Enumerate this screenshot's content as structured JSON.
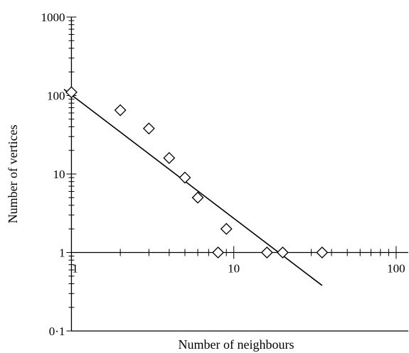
{
  "chart_data": {
    "type": "scatter",
    "title": "",
    "xlabel": "Number of neighbours",
    "ylabel": "Number of vertices",
    "xscale": "log",
    "yscale": "log",
    "xlim": [
      0.9,
      120
    ],
    "ylim": [
      0.1,
      1000
    ],
    "x_ticks": [
      {
        "value": 1,
        "label": "1"
      },
      {
        "value": 10,
        "label": "10"
      },
      {
        "value": 100,
        "label": "100"
      }
    ],
    "y_ticks": [
      {
        "value": 0.1,
        "label": "0·1"
      },
      {
        "value": 1,
        "label": "1"
      },
      {
        "value": 10,
        "label": "10"
      },
      {
        "value": 100,
        "label": "100"
      },
      {
        "value": 1000,
        "label": "1000"
      }
    ],
    "marker": "diamond",
    "points": [
      {
        "x": 1,
        "y": 110
      },
      {
        "x": 2,
        "y": 65
      },
      {
        "x": 3,
        "y": 38
      },
      {
        "x": 4,
        "y": 16
      },
      {
        "x": 5,
        "y": 9
      },
      {
        "x": 6,
        "y": 5
      },
      {
        "x": 8,
        "y": 1
      },
      {
        "x": 9,
        "y": 2
      },
      {
        "x": 16,
        "y": 1
      },
      {
        "x": 20,
        "y": 1
      },
      {
        "x": 35,
        "y": 1
      }
    ],
    "fit_line": {
      "x": [
        0.9,
        35
      ],
      "y": [
        120,
        0.38
      ]
    },
    "grid": false
  }
}
